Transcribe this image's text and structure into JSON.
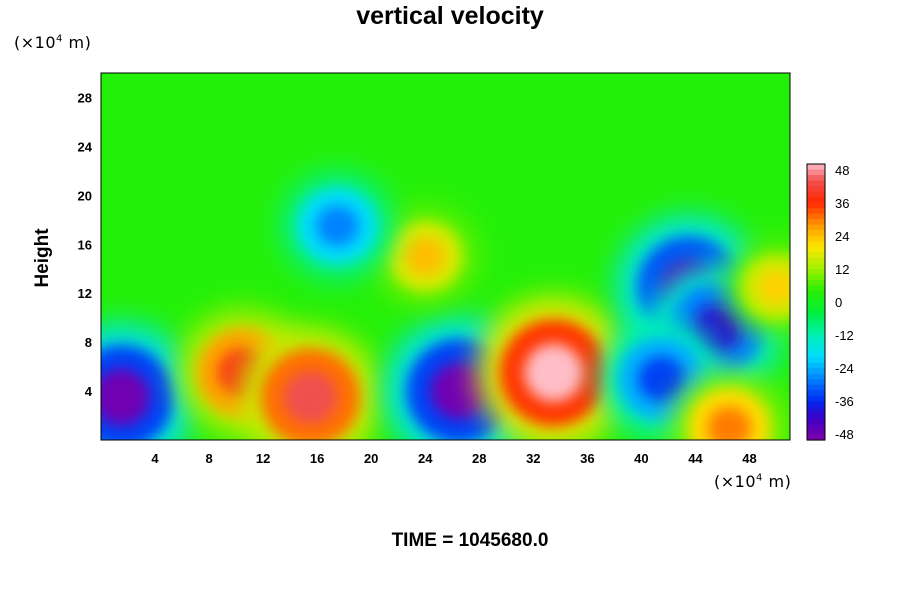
{
  "chart_data": {
    "type": "heatmap",
    "title": "vertical velocity",
    "ylabel": "Height",
    "xlabel": "",
    "unit_prefix": "(×10",
    "unit_exp": "4",
    "unit_suffix": " m)",
    "x_ticks": [
      "4",
      "8",
      "12",
      "16",
      "20",
      "24",
      "28",
      "32",
      "36",
      "40",
      "44",
      "48"
    ],
    "y_ticks": [
      "4",
      "8",
      "12",
      "16",
      "20",
      "24",
      "28"
    ],
    "x_tick_values": [
      4,
      8,
      12,
      16,
      20,
      24,
      28,
      32,
      36,
      40,
      44,
      48
    ],
    "y_tick_values": [
      4,
      8,
      12,
      16,
      20,
      24,
      28
    ],
    "xlim": [
      0,
      51
    ],
    "ylim": [
      0,
      30
    ],
    "colorbar": {
      "ticks": [
        "48",
        "36",
        "24",
        "12",
        "0",
        "-12",
        "-24",
        "-36",
        "-48"
      ],
      "tick_values": [
        48,
        36,
        24,
        12,
        0,
        -12,
        -24,
        -36,
        -48
      ],
      "range": [
        -50,
        50
      ]
    },
    "features": [
      {
        "x": 1.5,
        "y": 3.5,
        "value": -48
      },
      {
        "x": 10.5,
        "y": 5.5,
        "value": 38
      },
      {
        "x": 15.5,
        "y": 3.5,
        "value": 44
      },
      {
        "x": 26.5,
        "y": 4.0,
        "value": -48
      },
      {
        "x": 33.5,
        "y": 5.5,
        "value": 50
      },
      {
        "x": 43.5,
        "y": 12.5,
        "value": -46
      },
      {
        "x": 45.5,
        "y": 9.0,
        "value": -40
      },
      {
        "x": 41.5,
        "y": 5.0,
        "value": -34
      },
      {
        "x": 24.0,
        "y": 15.0,
        "value": 24
      },
      {
        "x": 50.0,
        "y": 12.5,
        "value": 22
      },
      {
        "x": 46.5,
        "y": 1.0,
        "value": 30
      },
      {
        "x": 17.5,
        "y": 17.5,
        "value": -28
      }
    ]
  },
  "footer": {
    "time_text": "TIME = 1045680.0"
  }
}
